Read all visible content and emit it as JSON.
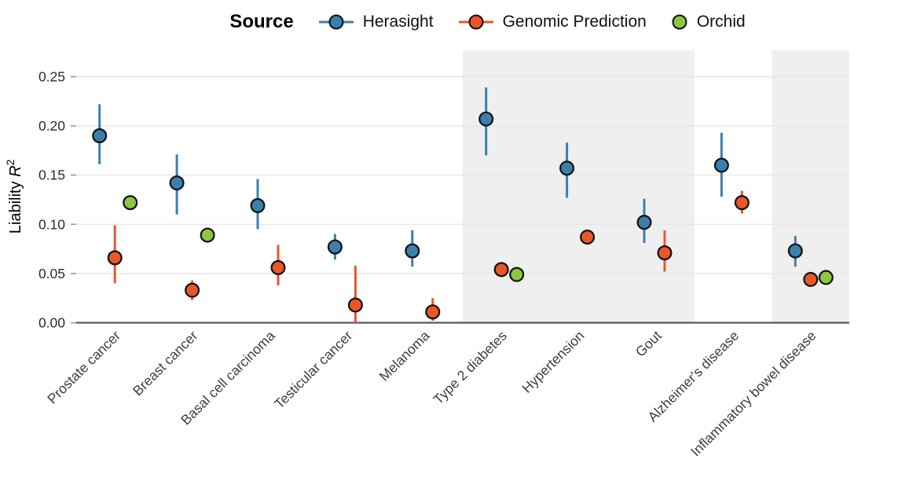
{
  "legend": {
    "title": "Source",
    "items": [
      {
        "label": "Herasight",
        "color": "#3A80AC",
        "has_line": true
      },
      {
        "label": "Genomic Prediction",
        "color": "#E8572A",
        "has_line": true
      },
      {
        "label": "Orchid",
        "color": "#8DC63F",
        "has_line": false
      }
    ]
  },
  "chart_data": {
    "type": "scatter",
    "title": "",
    "xlabel": "",
    "ylabel": "Liability R^2",
    "ylabel_text": "Liability ",
    "ylabel_symbol": "R",
    "ylabel_sup": "2",
    "ylim": [
      0,
      0.277
    ],
    "yticks": [
      0.0,
      0.05,
      0.1,
      0.15,
      0.2,
      0.25
    ],
    "ytick_labels": [
      "0.00",
      "0.05",
      "0.10",
      "0.15",
      "0.20",
      "0.25"
    ],
    "grid": true,
    "legend_position": "top",
    "categories": [
      "Prostate cancer",
      "Breast cancer",
      "Basal cell carcinoma",
      "Testicular cancer",
      "Melanoma",
      "Type 2 diabetes",
      "Hypertension",
      "Gout",
      "Alzheimer's disease",
      "Inflammatory bowel disease"
    ],
    "shaded_categories": [
      [
        "Type 2 diabetes",
        "Hypertension",
        "Gout"
      ],
      [
        "Inflammatory bowel disease"
      ]
    ],
    "shaded_ranges": [
      [
        5,
        7
      ],
      [
        9,
        9
      ]
    ],
    "band_color": "#EFEFEF",
    "axis_color": "#58595B",
    "series": [
      {
        "name": "Herasight",
        "color": "#3A80AC",
        "values": [
          0.19,
          0.142,
          0.119,
          0.077,
          0.073,
          0.207,
          0.157,
          0.102,
          0.16,
          0.073
        ],
        "ci_low": [
          0.161,
          0.11,
          0.095,
          0.064,
          0.057,
          0.17,
          0.127,
          0.081,
          0.128,
          0.057
        ],
        "ci_high": [
          0.222,
          0.171,
          0.146,
          0.09,
          0.094,
          0.239,
          0.183,
          0.126,
          0.193,
          0.088
        ]
      },
      {
        "name": "Genomic Prediction",
        "color": "#E8572A",
        "values": [
          0.066,
          0.033,
          0.056,
          0.018,
          0.011,
          0.054,
          0.087,
          0.071,
          0.122,
          0.044
        ],
        "ci_low": [
          0.04,
          0.023,
          0.038,
          0.0,
          0.002,
          0.048,
          0.08,
          0.052,
          0.111,
          0.039
        ],
        "ci_high": [
          0.099,
          0.043,
          0.079,
          0.058,
          0.025,
          0.061,
          0.094,
          0.094,
          0.134,
          0.049
        ]
      },
      {
        "name": "Orchid",
        "color": "#8DC63F",
        "values": [
          0.122,
          0.089,
          null,
          null,
          null,
          0.049,
          null,
          null,
          null,
          0.046
        ],
        "ci_low": [
          null,
          null,
          null,
          null,
          null,
          null,
          null,
          null,
          null,
          null
        ],
        "ci_high": [
          null,
          null,
          null,
          null,
          null,
          null,
          null,
          null,
          null,
          null
        ]
      }
    ]
  }
}
